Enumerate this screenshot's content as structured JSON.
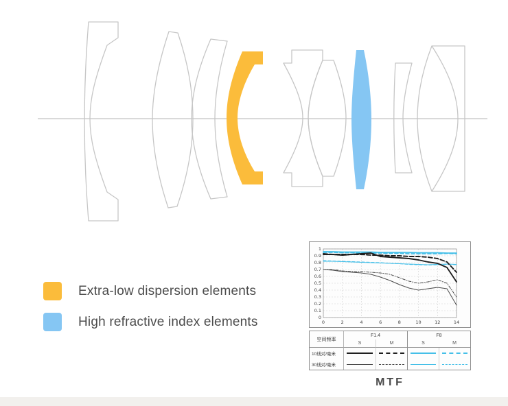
{
  "colors": {
    "ed": "#FBBC3B",
    "hri": "#85C6F3",
    "lens_outline": "#c6c6c6",
    "axis_line": "#b3b3b3",
    "cyan_line": "#45BFE8",
    "black_thick": "#1F1F1F",
    "black_thin": "#4A4A4A"
  },
  "legend": {
    "items": [
      {
        "key": "ed",
        "label": "Extra-low dispersion elements"
      },
      {
        "key": "hri",
        "label": "High refractive index elements"
      }
    ]
  },
  "mtf": {
    "title": "MTF",
    "table": {
      "freq_header": "空间频率",
      "aperture_f14": "F1.4",
      "aperture_f8": "F8",
      "sub_s": "S",
      "sub_m": "M",
      "row1_label": "10线对/毫米",
      "row2_label": "30线对/毫米"
    }
  },
  "chart_data": {
    "type": "line",
    "title": "MTF",
    "xlabel": "",
    "ylabel": "",
    "xlim": [
      0,
      14
    ],
    "ylim": [
      0,
      1
    ],
    "grid": true,
    "legend_position": "bottom-table",
    "xticks": [
      0,
      2,
      4,
      6,
      8,
      10,
      12,
      14
    ],
    "yticks": [
      0,
      0.1,
      0.2,
      0.3,
      0.4,
      0.5,
      0.6,
      0.7,
      0.8,
      0.9,
      1
    ],
    "ytick_labels": [
      "0",
      "0.1",
      "0.2",
      "0.3",
      "0.4",
      "0.5",
      "0.6",
      "0.7",
      "0.8",
      "0.9",
      "1"
    ],
    "x": [
      0,
      1,
      2,
      3,
      4,
      5,
      6,
      7,
      8,
      9,
      10,
      11,
      12,
      13,
      14
    ],
    "series": [
      {
        "name": "F8 sagittal 10 lp/mm",
        "color": "#45BFE8",
        "width": 1.7,
        "dash": "",
        "values": [
          0.96,
          0.96,
          0.955,
          0.955,
          0.955,
          0.955,
          0.95,
          0.95,
          0.95,
          0.95,
          0.945,
          0.945,
          0.945,
          0.94,
          0.94
        ]
      },
      {
        "name": "F8 meridional 10 lp/mm",
        "color": "#45BFE8",
        "width": 1.7,
        "dash": "5,3",
        "values": [
          0.95,
          0.95,
          0.945,
          0.945,
          0.94,
          0.94,
          0.94,
          0.935,
          0.935,
          0.93,
          0.93,
          0.93,
          0.93,
          0.935,
          0.93
        ]
      },
      {
        "name": "F8 sagittal 30 lp/mm",
        "color": "#45BFE8",
        "width": 1.1,
        "dash": "",
        "values": [
          0.82,
          0.82,
          0.815,
          0.81,
          0.805,
          0.8,
          0.795,
          0.79,
          0.785,
          0.78,
          0.775,
          0.77,
          0.775,
          0.78,
          0.775
        ]
      },
      {
        "name": "F8 meridional 30 lp/mm",
        "color": "#45BFE8",
        "width": 1.1,
        "dash": "4,3",
        "values": [
          0.83,
          0.825,
          0.82,
          0.815,
          0.81,
          0.805,
          0.8,
          0.79,
          0.785,
          0.775,
          0.77,
          0.765,
          0.77,
          0.775,
          0.77
        ]
      },
      {
        "name": "F1.4 sagittal 30 lp/mm",
        "color": "#4A4A4A",
        "width": 1.0,
        "dash": "",
        "values": [
          0.7,
          0.69,
          0.67,
          0.66,
          0.65,
          0.63,
          0.59,
          0.54,
          0.48,
          0.43,
          0.4,
          0.42,
          0.44,
          0.42,
          0.18
        ]
      },
      {
        "name": "F1.4 meridional 30 lp/mm",
        "color": "#4A4A4A",
        "width": 1.0,
        "dash": "4,2,1,2",
        "values": [
          0.7,
          0.7,
          0.68,
          0.67,
          0.67,
          0.66,
          0.65,
          0.63,
          0.58,
          0.53,
          0.5,
          0.52,
          0.55,
          0.5,
          0.3
        ]
      },
      {
        "name": "F1.4 sagittal 10 lp/mm",
        "color": "#1F1F1F",
        "width": 1.9,
        "dash": "",
        "values": [
          0.92,
          0.92,
          0.91,
          0.92,
          0.93,
          0.94,
          0.89,
          0.88,
          0.87,
          0.86,
          0.84,
          0.81,
          0.79,
          0.73,
          0.52
        ]
      },
      {
        "name": "F1.4 meridional 10 lp/mm",
        "color": "#1F1F1F",
        "width": 1.9,
        "dash": "6,3",
        "values": [
          0.93,
          0.92,
          0.92,
          0.92,
          0.92,
          0.91,
          0.91,
          0.9,
          0.9,
          0.89,
          0.89,
          0.88,
          0.86,
          0.81,
          0.66
        ]
      }
    ]
  }
}
